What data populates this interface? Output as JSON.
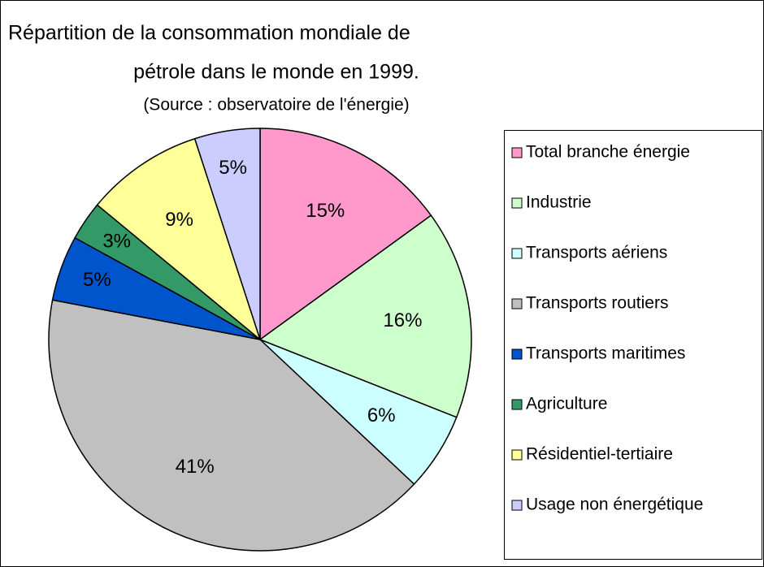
{
  "chart_data": {
    "type": "pie",
    "title": [
      "Répartition de la consommation mondiale de",
      "pétrole dans le monde en 1999."
    ],
    "subtitle": "(Source : observatoire de l'énergie)",
    "categories": [
      "Total branche énergie",
      "Industrie",
      "Transports aériens",
      "Transports routiers",
      "Transports maritimes",
      "Agriculture",
      "Résidentiel-tertiaire",
      "Usage non énergétique"
    ],
    "values": [
      15,
      16,
      6,
      41,
      5,
      3,
      9,
      5
    ],
    "value_labels": [
      "15%",
      "16%",
      "6%",
      "41%",
      "5%",
      "3%",
      "9%",
      "5%"
    ],
    "colors": [
      "#ff99cc",
      "#ccffcc",
      "#ccffff",
      "#c0c0c0",
      "#0055cc",
      "#339966",
      "#ffff99",
      "#ccccff"
    ],
    "legend": "right"
  }
}
